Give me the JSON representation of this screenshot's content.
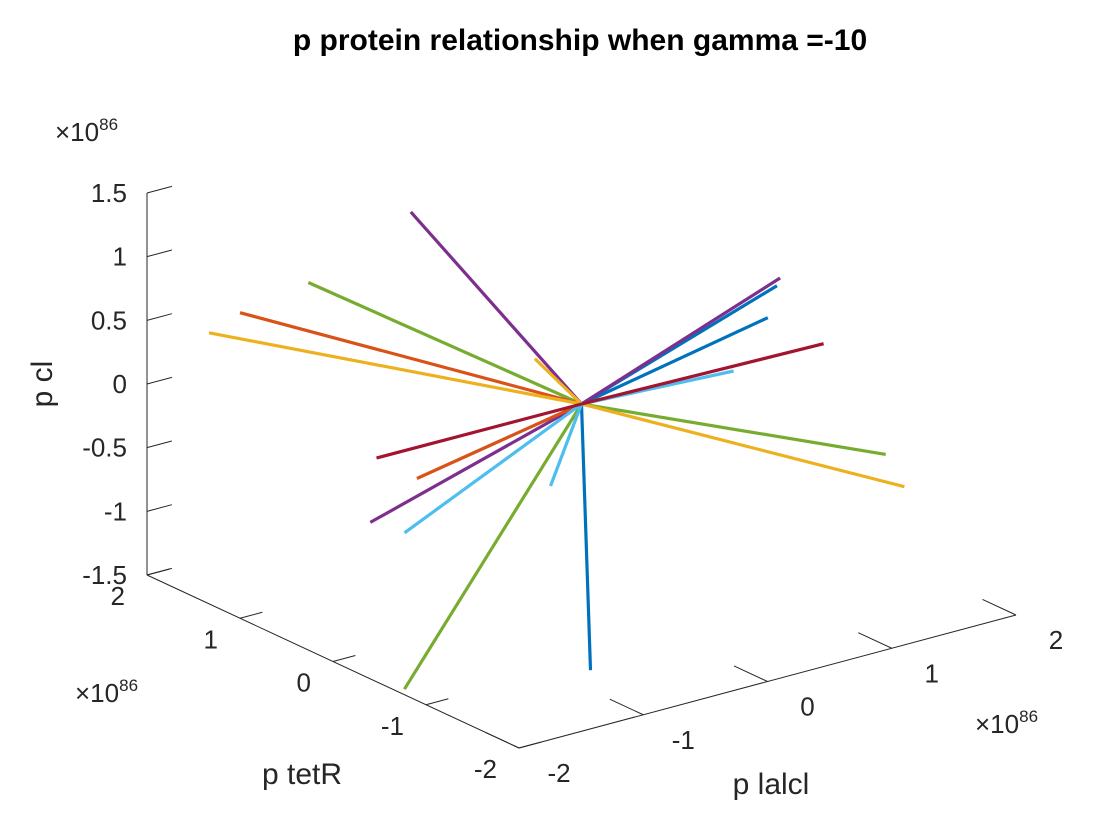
{
  "chart_data": {
    "type": "line",
    "projection": "3d",
    "title": "p protein relationship when gamma =-10",
    "xlabel": "p lalcl",
    "ylabel": "p tetR",
    "zlabel": "p cl",
    "x_exponent": "×10",
    "x_exponent_power": "86",
    "y_exponent": "×10",
    "y_exponent_power": "86",
    "z_exponent": "×10",
    "z_exponent_power": "86",
    "x_ticks": [
      "-2",
      "-1",
      "0",
      "1",
      "2"
    ],
    "y_ticks": [
      "-2",
      "-1",
      "0",
      "1",
      "2"
    ],
    "z_ticks": [
      "-1.5",
      "-1",
      "-0.5",
      "0",
      "0.5",
      "1",
      "1.5"
    ],
    "xlim": [
      -2,
      2
    ],
    "ylim": [
      -2,
      2
    ],
    "zlim": [
      -1.5,
      1.5
    ],
    "grid": false,
    "legend": "none",
    "origin": [
      0,
      0,
      0
    ],
    "series": [
      {
        "color": "#0072BD",
        "x": [
          0,
          0.9
        ],
        "y": [
          0,
          -0.9
        ],
        "z": [
          0,
          1.0
        ]
      },
      {
        "color": "#0072BD",
        "x": [
          0,
          1.2
        ],
        "y": [
          0,
          -0.4
        ],
        "z": [
          0,
          0.5
        ]
      },
      {
        "color": "#0072BD",
        "x": [
          0,
          -1.2
        ],
        "y": [
          0,
          -1.7
        ],
        "z": [
          0,
          -1.2
        ]
      },
      {
        "color": "#7E2F8E",
        "x": [
          0,
          -1.0
        ],
        "y": [
          0,
          0.5
        ],
        "z": [
          0,
          1.6
        ]
      },
      {
        "color": "#7E2F8E",
        "x": [
          0,
          1.0
        ],
        "y": [
          0,
          -0.8
        ],
        "z": [
          0,
          1.0
        ]
      },
      {
        "color": "#7E2F8E",
        "x": [
          0,
          -1.4
        ],
        "y": [
          0,
          0.4
        ],
        "z": [
          0,
          -0.7
        ]
      },
      {
        "color": "#77AC30",
        "x": [
          0,
          -1.6
        ],
        "y": [
          0,
          0.8
        ],
        "z": [
          0,
          1.1
        ]
      },
      {
        "color": "#77AC30",
        "x": [
          0,
          1.7
        ],
        "y": [
          0,
          -1.0
        ],
        "z": [
          0,
          -0.5
        ]
      },
      {
        "color": "#77AC30",
        "x": [
          0,
          -1.8
        ],
        "y": [
          0,
          -0.5
        ],
        "z": [
          0,
          -1.6
        ]
      },
      {
        "color": "#D95319",
        "x": [
          0,
          -2.0
        ],
        "y": [
          0,
          1.0
        ],
        "z": [
          0,
          0.9
        ]
      },
      {
        "color": "#D95319",
        "x": [
          0,
          -1.1
        ],
        "y": [
          0,
          0.3
        ],
        "z": [
          0,
          -0.4
        ]
      },
      {
        "color": "#EDB120",
        "x": [
          0,
          -2.1
        ],
        "y": [
          0,
          1.2
        ],
        "z": [
          0,
          0.7
        ]
      },
      {
        "color": "#EDB120",
        "x": [
          0,
          2.0
        ],
        "y": [
          0,
          -0.8
        ],
        "z": [
          0,
          -0.9
        ]
      },
      {
        "color": "#EDB120",
        "x": [
          0,
          -0.3
        ],
        "y": [
          0,
          0.1
        ],
        "z": [
          0,
          0.4
        ]
      },
      {
        "color": "#4DBEEE",
        "x": [
          0,
          1.0
        ],
        "y": [
          0,
          -0.3
        ],
        "z": [
          0,
          0.1
        ]
      },
      {
        "color": "#4DBEEE",
        "x": [
          0,
          0.2
        ],
        "y": [
          0,
          0.6
        ],
        "z": [
          0,
          -0.9
        ]
      },
      {
        "color": "#4DBEEE",
        "x": [
          0,
          -1.2
        ],
        "y": [
          0,
          0.3
        ],
        "z": [
          0,
          -0.8
        ]
      },
      {
        "color": "#A2142F",
        "x": [
          0,
          1.2
        ],
        "y": [
          0,
          -1.0
        ],
        "z": [
          0,
          0.5
        ]
      },
      {
        "color": "#A2142F",
        "x": [
          0,
          -1.5
        ],
        "y": [
          0,
          0.2
        ],
        "z": [
          0,
          -0.1
        ]
      }
    ]
  }
}
